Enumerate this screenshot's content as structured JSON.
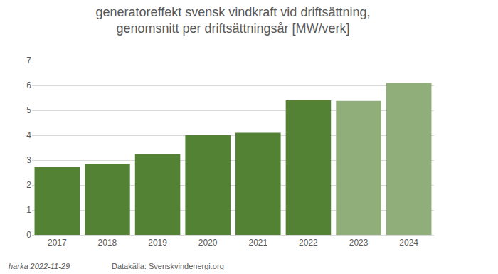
{
  "chart_data": {
    "type": "bar",
    "title": "generatoreffekt svensk vindkraft vid driftsättning,\ngenomsnitt per driftsättningsår [MW/verk]",
    "categories": [
      "2017",
      "2018",
      "2019",
      "2020",
      "2021",
      "2022",
      "2023",
      "2024"
    ],
    "values": [
      2.72,
      2.85,
      3.25,
      4.0,
      4.1,
      5.4,
      5.38,
      6.1
    ],
    "colors": [
      "#548235",
      "#548235",
      "#548235",
      "#548235",
      "#548235",
      "#548235",
      "#8fae79",
      "#8fae79"
    ],
    "ylim": [
      0,
      7
    ],
    "yticks": [
      0,
      1,
      2,
      3,
      4,
      5,
      6,
      7
    ],
    "grid": true,
    "annotations": [
      "harka 2022-11-29",
      "Datakälla: Svenskvindenergi.org"
    ]
  }
}
